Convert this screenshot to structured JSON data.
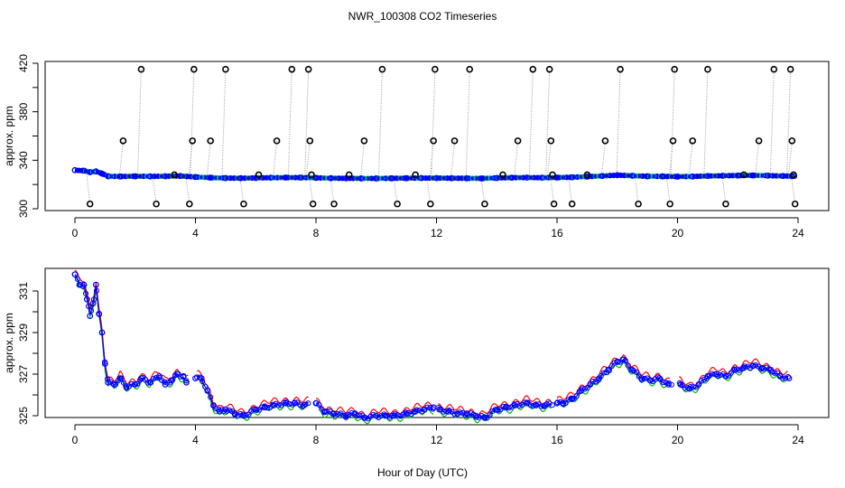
{
  "title": "NWR_100308  CO2 Timeseries",
  "xlabel": "Hour of Day (UTC)",
  "colors": {
    "circle": "#000000",
    "series_blue": "#0000ff",
    "series_green": "#00bb00",
    "series_red": "#ff0000",
    "series_cyan": "#00cccc",
    "dotted": "#999999"
  },
  "chart_data": [
    {
      "type": "scatter",
      "ylabel": "approx. ppm",
      "xlim": [
        0,
        24
      ],
      "ylim": [
        300,
        420
      ],
      "x_ticks": [
        0,
        4,
        8,
        12,
        16,
        20,
        24
      ],
      "y_ticks": [
        300,
        340,
        380,
        420
      ],
      "grid": false,
      "baseline_series": {
        "name": "",
        "points": [
          [
            0.0,
            331.8
          ],
          [
            0.3,
            331.4
          ],
          [
            0.5,
            330.2
          ],
          [
            0.7,
            330.8
          ],
          [
            0.9,
            329.0
          ],
          [
            1.1,
            326.8
          ],
          [
            1.5,
            326.6
          ],
          [
            2.0,
            326.8
          ],
          [
            2.5,
            326.7
          ],
          [
            3.0,
            326.8
          ],
          [
            3.5,
            327.0
          ],
          [
            4.0,
            326.2
          ],
          [
            4.5,
            325.6
          ],
          [
            5.0,
            325.3
          ],
          [
            5.5,
            325.2
          ],
          [
            6.0,
            325.4
          ],
          [
            6.5,
            325.6
          ],
          [
            7.0,
            325.7
          ],
          [
            7.5,
            325.7
          ],
          [
            8.0,
            325.5
          ],
          [
            8.5,
            325.2
          ],
          [
            9.0,
            325.1
          ],
          [
            9.5,
            325.0
          ],
          [
            10.0,
            325.0
          ],
          [
            10.5,
            325.1
          ],
          [
            11.0,
            325.2
          ],
          [
            11.5,
            325.3
          ],
          [
            12.0,
            325.3
          ],
          [
            12.5,
            325.2
          ],
          [
            13.0,
            325.1
          ],
          [
            13.5,
            325.0
          ],
          [
            14.0,
            325.4
          ],
          [
            14.5,
            325.6
          ],
          [
            15.0,
            325.7
          ],
          [
            15.5,
            325.6
          ],
          [
            16.0,
            325.7
          ],
          [
            16.5,
            326.0
          ],
          [
            17.0,
            326.5
          ],
          [
            17.5,
            327.0
          ],
          [
            18.0,
            327.7
          ],
          [
            18.5,
            327.2
          ],
          [
            19.0,
            326.8
          ],
          [
            19.5,
            326.7
          ],
          [
            20.0,
            326.5
          ],
          [
            20.5,
            326.6
          ],
          [
            21.0,
            327.0
          ],
          [
            21.5,
            327.2
          ],
          [
            22.0,
            327.4
          ],
          [
            22.5,
            327.5
          ],
          [
            23.0,
            327.3
          ],
          [
            23.5,
            327.0
          ],
          [
            23.8,
            326.9
          ]
        ]
      },
      "spike_points": [
        [
          0.5,
          304
        ],
        [
          1.6,
          356
        ],
        [
          2.2,
          415
        ],
        [
          2.7,
          304
        ],
        [
          3.3,
          328
        ],
        [
          3.8,
          304
        ],
        [
          3.9,
          356
        ],
        [
          3.95,
          415
        ],
        [
          4.5,
          356
        ],
        [
          5.0,
          415
        ],
        [
          5.6,
          304
        ],
        [
          6.1,
          328
        ],
        [
          6.7,
          356
        ],
        [
          7.2,
          415
        ],
        [
          7.75,
          415
        ],
        [
          7.8,
          356
        ],
        [
          7.85,
          328
        ],
        [
          7.9,
          304
        ],
        [
          8.6,
          304
        ],
        [
          9.1,
          328
        ],
        [
          9.6,
          356
        ],
        [
          10.2,
          415
        ],
        [
          10.7,
          304
        ],
        [
          11.3,
          328
        ],
        [
          11.8,
          304
        ],
        [
          11.9,
          356
        ],
        [
          11.95,
          415
        ],
        [
          12.6,
          356
        ],
        [
          13.1,
          415
        ],
        [
          13.6,
          304
        ],
        [
          14.2,
          328
        ],
        [
          14.7,
          356
        ],
        [
          15.2,
          415
        ],
        [
          15.75,
          415
        ],
        [
          15.8,
          356
        ],
        [
          15.85,
          328
        ],
        [
          15.9,
          304
        ],
        [
          16.5,
          304
        ],
        [
          17.0,
          328
        ],
        [
          17.6,
          356
        ],
        [
          18.1,
          415
        ],
        [
          18.7,
          304
        ],
        [
          19.75,
          304
        ],
        [
          19.85,
          356
        ],
        [
          19.9,
          415
        ],
        [
          20.5,
          356
        ],
        [
          21.0,
          415
        ],
        [
          21.6,
          304
        ],
        [
          22.2,
          328
        ],
        [
          22.7,
          356
        ],
        [
          23.2,
          415
        ],
        [
          23.75,
          415
        ],
        [
          23.8,
          356
        ],
        [
          23.85,
          328
        ],
        [
          23.9,
          304
        ]
      ]
    },
    {
      "type": "line",
      "ylabel": "approx. ppm",
      "xlim": [
        0,
        24
      ],
      "ylim": [
        325,
        332
      ],
      "x_ticks": [
        0,
        4,
        8,
        12,
        16,
        20,
        24
      ],
      "y_ticks": [
        325,
        327,
        329,
        331
      ],
      "grid": false,
      "series": [
        {
          "name": "",
          "color": "blue",
          "points": [
            [
              0.0,
              331.8
            ],
            [
              0.15,
              331.3
            ],
            [
              0.3,
              331.3
            ],
            [
              0.4,
              330.6
            ],
            [
              0.5,
              329.8
            ],
            [
              0.6,
              330.4
            ],
            [
              0.7,
              331.3
            ],
            [
              0.8,
              329.9
            ],
            [
              0.9,
              329.0
            ],
            [
              1.0,
              327.5
            ],
            [
              1.1,
              326.6
            ],
            [
              1.3,
              326.5
            ],
            [
              1.5,
              326.8
            ],
            [
              1.7,
              326.4
            ],
            [
              2.0,
              326.5
            ],
            [
              2.2,
              326.8
            ],
            [
              2.5,
              326.6
            ],
            [
              2.8,
              326.9
            ],
            [
              3.0,
              326.5
            ],
            [
              3.2,
              326.7
            ],
            [
              3.4,
              327.0
            ],
            [
              3.6,
              326.9
            ],
            [
              3.7,
              326.6
            ],
            [
              4.0,
              326.8
            ],
            [
              4.2,
              326.8
            ],
            [
              4.4,
              326.2
            ],
            [
              4.6,
              325.5
            ],
            [
              4.8,
              325.2
            ],
            [
              5.0,
              325.3
            ],
            [
              5.3,
              325.1
            ],
            [
              5.6,
              325.0
            ],
            [
              6.0,
              325.3
            ],
            [
              6.3,
              325.4
            ],
            [
              6.6,
              325.5
            ],
            [
              7.0,
              325.6
            ],
            [
              7.3,
              325.6
            ],
            [
              7.6,
              325.5
            ],
            [
              8.0,
              325.6
            ],
            [
              8.3,
              325.2
            ],
            [
              8.6,
              325.1
            ],
            [
              9.0,
              325.0
            ],
            [
              9.3,
              325.1
            ],
            [
              9.6,
              324.9
            ],
            [
              10.0,
              325.0
            ],
            [
              10.3,
              325.0
            ],
            [
              10.6,
              325.0
            ],
            [
              11.0,
              325.1
            ],
            [
              11.3,
              325.2
            ],
            [
              11.6,
              325.3
            ],
            [
              11.9,
              325.4
            ],
            [
              12.1,
              325.3
            ],
            [
              12.4,
              325.2
            ],
            [
              12.7,
              325.1
            ],
            [
              13.0,
              325.1
            ],
            [
              13.3,
              325.0
            ],
            [
              13.6,
              324.9
            ],
            [
              14.0,
              325.3
            ],
            [
              14.3,
              325.4
            ],
            [
              14.6,
              325.5
            ],
            [
              15.0,
              325.6
            ],
            [
              15.3,
              325.5
            ],
            [
              15.6,
              325.5
            ],
            [
              16.0,
              325.6
            ],
            [
              16.2,
              325.6
            ],
            [
              16.5,
              325.8
            ],
            [
              16.8,
              326.2
            ],
            [
              17.1,
              326.5
            ],
            [
              17.4,
              326.8
            ],
            [
              17.7,
              327.2
            ],
            [
              18.0,
              327.6
            ],
            [
              18.2,
              327.7
            ],
            [
              18.5,
              327.2
            ],
            [
              18.8,
              326.8
            ],
            [
              19.1,
              326.7
            ],
            [
              19.4,
              326.8
            ],
            [
              19.7,
              326.5
            ],
            [
              20.1,
              326.5
            ],
            [
              20.4,
              326.3
            ],
            [
              20.7,
              326.5
            ],
            [
              21.0,
              326.9
            ],
            [
              21.3,
              327.0
            ],
            [
              21.6,
              326.9
            ],
            [
              21.9,
              327.2
            ],
            [
              22.2,
              327.3
            ],
            [
              22.5,
              327.4
            ],
            [
              22.8,
              327.3
            ],
            [
              23.1,
              327.2
            ],
            [
              23.4,
              326.9
            ],
            [
              23.7,
              326.8
            ]
          ]
        },
        {
          "name": "",
          "color": "green",
          "offset": -0.15
        },
        {
          "name": "",
          "color": "red",
          "offset": 0.2
        }
      ]
    }
  ]
}
